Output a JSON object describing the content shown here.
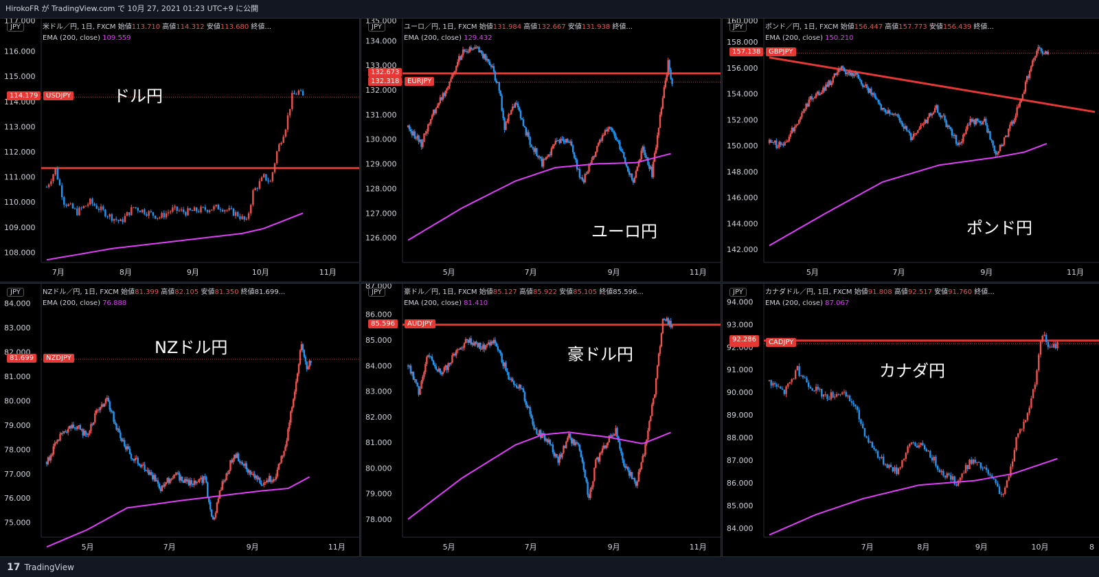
{
  "header": {
    "text": "HirokoFR が TradingView.com で 10月 27, 2021 01:23 UTC+9 に公開"
  },
  "footer": {
    "logo": "17",
    "brand": "TradingView"
  },
  "colors": {
    "up": "#ef5350",
    "down": "#2196f3",
    "ema": "#e040fb",
    "level": "#e53935",
    "bg": "#000000"
  },
  "chart_data": [
    {
      "type": "candlestick",
      "currency": "JPY",
      "symbol": "米ドル／円, 1日, FXCM",
      "ohlc": {
        "open_label": "始値",
        "open": "113.710",
        "high_label": "高値",
        "high": "114.312",
        "low_label": "安値",
        "low": "113.680",
        "close_label": "終値..."
      },
      "ema_label": "EMA (200, close)",
      "ema_value": "109.559",
      "overlay_title": "ドル円",
      "ticker": "USDJPY",
      "last_price": "114.179",
      "ylim": [
        107.6,
        117.3
      ],
      "yticks": [
        "108.000",
        "109.000",
        "110.000",
        "111.000",
        "112.000",
        "113.000",
        "114.000",
        "115.000",
        "116.000"
      ],
      "top_partial": "117.000",
      "xticks": [
        "7月",
        "8月",
        "9月",
        "10月",
        "11月"
      ],
      "xtick_days": [
        5,
        36,
        67,
        97,
        128
      ],
      "xmax": 142,
      "end_day": 118,
      "level": 111.35,
      "trendline": null,
      "ema_path": [
        [
          0,
          107.7
        ],
        [
          30,
          108.15
        ],
        [
          60,
          108.45
        ],
        [
          90,
          108.75
        ],
        [
          100,
          108.95
        ],
        [
          118,
          109.56
        ]
      ],
      "path": [
        [
          0,
          110.6
        ],
        [
          4,
          111.3
        ],
        [
          8,
          110.0
        ],
        [
          14,
          109.6
        ],
        [
          20,
          110.0
        ],
        [
          28,
          109.5
        ],
        [
          34,
          109.2
        ],
        [
          40,
          109.8
        ],
        [
          46,
          109.6
        ],
        [
          52,
          109.4
        ],
        [
          58,
          109.7
        ],
        [
          64,
          109.6
        ],
        [
          72,
          109.7
        ],
        [
          80,
          109.8
        ],
        [
          88,
          109.5
        ],
        [
          92,
          109.2
        ],
        [
          95,
          110.4
        ],
        [
          100,
          111.0
        ],
        [
          103,
          110.8
        ],
        [
          106,
          112.0
        ],
        [
          110,
          113.0
        ],
        [
          113,
          114.2
        ],
        [
          116,
          114.4
        ],
        [
          118,
          114.18
        ]
      ]
    },
    {
      "type": "candlestick",
      "currency": "JPY",
      "symbol": "ユーロ／円, 1日, FXCM",
      "ohlc": {
        "open_label": "始値",
        "open": "131.984",
        "high_label": "高値",
        "high": "132.667",
        "low_label": "安値",
        "low": "131.938",
        "close_label": "終値..."
      },
      "ema_label": "EMA (200, close)",
      "ema_value": "129.432",
      "overlay_title": "ユーロ円",
      "ticker": "EURJPY",
      "last_price": "132.318",
      "level_label": "132.673",
      "ylim": [
        125.0,
        134.9
      ],
      "yticks": [
        "126.000",
        "127.000",
        "128.000",
        "129.000",
        "130.000",
        "131.000",
        "132.000",
        "133.000",
        "134.000"
      ],
      "top_partial": "135.000",
      "xticks": [
        "5月",
        "7月",
        "9月",
        "11月"
      ],
      "xtick_days": [
        30,
        91,
        153,
        214
      ],
      "xmax": 230,
      "end_day": 197,
      "level": 132.673,
      "trendline": null,
      "ema_path": [
        [
          0,
          125.9
        ],
        [
          40,
          127.2
        ],
        [
          80,
          128.3
        ],
        [
          110,
          128.85
        ],
        [
          140,
          129.0
        ],
        [
          170,
          129.05
        ],
        [
          197,
          129.43
        ]
      ],
      "path": [
        [
          0,
          130.5
        ],
        [
          10,
          129.8
        ],
        [
          18,
          131.0
        ],
        [
          28,
          132.0
        ],
        [
          40,
          133.5
        ],
        [
          52,
          133.7
        ],
        [
          62,
          133.0
        ],
        [
          68,
          132.0
        ],
        [
          72,
          130.5
        ],
        [
          80,
          131.5
        ],
        [
          90,
          130.0
        ],
        [
          100,
          129.0
        ],
        [
          110,
          129.8
        ],
        [
          120,
          130.0
        ],
        [
          130,
          128.2
        ],
        [
          140,
          129.5
        ],
        [
          150,
          130.6
        ],
        [
          160,
          129.4
        ],
        [
          168,
          128.2
        ],
        [
          175,
          129.6
        ],
        [
          182,
          128.6
        ],
        [
          188,
          131.0
        ],
        [
          194,
          133.1
        ],
        [
          197,
          132.3
        ]
      ]
    },
    {
      "type": "candlestick",
      "currency": "JPY",
      "symbol": "ポンド／円, 1日, FXCM",
      "ohlc": {
        "open_label": "始値",
        "open": "156.447",
        "high_label": "高値",
        "high": "157.773",
        "low_label": "安値",
        "low": "156.439",
        "close_label": "終値..."
      },
      "ema_label": "EMA (200, close)",
      "ema_value": "150.210",
      "overlay_title": "ポンド円",
      "ticker": "GBPJPY",
      "last_price": "157.138",
      "ylim": [
        141.0,
        159.8
      ],
      "yticks": [
        "142.000",
        "144.000",
        "146.000",
        "148.000",
        "150.000",
        "152.000",
        "154.000",
        "156.000",
        "158.000"
      ],
      "top_partial": "160.000",
      "xticks": [
        "5月",
        "7月",
        "9月",
        "11月"
      ],
      "xtick_days": [
        30,
        91,
        153,
        214
      ],
      "xmax": 230,
      "end_day": 197,
      "level": null,
      "trendline": [
        [
          0,
          156.8
        ],
        [
          230,
          152.6
        ]
      ],
      "ema_path": [
        [
          0,
          142.3
        ],
        [
          40,
          144.8
        ],
        [
          80,
          147.2
        ],
        [
          120,
          148.5
        ],
        [
          160,
          149.1
        ],
        [
          180,
          149.5
        ],
        [
          197,
          150.2
        ]
      ],
      "path": [
        [
          0,
          150.2
        ],
        [
          10,
          150.0
        ],
        [
          18,
          151.5
        ],
        [
          28,
          153.5
        ],
        [
          40,
          154.5
        ],
        [
          50,
          155.9
        ],
        [
          62,
          155.3
        ],
        [
          72,
          154.0
        ],
        [
          80,
          152.8
        ],
        [
          92,
          152.1
        ],
        [
          100,
          150.5
        ],
        [
          110,
          151.8
        ],
        [
          118,
          153.0
        ],
        [
          126,
          151.5
        ],
        [
          134,
          150.0
        ],
        [
          142,
          151.8
        ],
        [
          152,
          151.9
        ],
        [
          160,
          149.3
        ],
        [
          168,
          150.8
        ],
        [
          176,
          153.0
        ],
        [
          184,
          155.8
        ],
        [
          190,
          157.6
        ],
        [
          194,
          157.0
        ],
        [
          197,
          157.14
        ]
      ]
    },
    {
      "type": "candlestick",
      "currency": "JPY",
      "symbol": "NZドル／円, 1日, FXCM",
      "ohlc": {
        "open_label": "始値",
        "open": "81.399",
        "high_label": "高値",
        "high": "82.105",
        "low_label": "安値",
        "low": "81.350",
        "close_label": "終値81.699..."
      },
      "ema_label": "EMA (200, close)",
      "ema_value": "76.888",
      "overlay_title": "NZドル円",
      "ticker": "NZDJPY",
      "last_price": "81.699",
      "ylim": [
        74.4,
        84.8
      ],
      "yticks": [
        "75.000",
        "76.000",
        "77.000",
        "78.000",
        "79.000",
        "80.000",
        "81.000",
        "82.000",
        "83.000",
        "84.000"
      ],
      "top_partial": null,
      "xticks": [
        "5月",
        "7月",
        "9月",
        "11月"
      ],
      "xtick_days": [
        30,
        91,
        153,
        214
      ],
      "xmax": 230,
      "end_day": 197,
      "level": null,
      "trendline": null,
      "ema_path": [
        [
          0,
          74.0
        ],
        [
          30,
          74.7
        ],
        [
          60,
          75.6
        ],
        [
          100,
          75.9
        ],
        [
          130,
          76.1
        ],
        [
          160,
          76.3
        ],
        [
          180,
          76.4
        ],
        [
          197,
          76.9
        ]
      ],
      "path": [
        [
          0,
          77.5
        ],
        [
          10,
          78.5
        ],
        [
          20,
          79.0
        ],
        [
          30,
          78.6
        ],
        [
          38,
          79.6
        ],
        [
          45,
          80.0
        ],
        [
          55,
          78.5
        ],
        [
          65,
          77.6
        ],
        [
          75,
          77.2
        ],
        [
          85,
          76.4
        ],
        [
          95,
          77.0
        ],
        [
          108,
          76.6
        ],
        [
          118,
          76.8
        ],
        [
          124,
          75.0
        ],
        [
          130,
          76.5
        ],
        [
          140,
          77.8
        ],
        [
          150,
          77.2
        ],
        [
          160,
          76.6
        ],
        [
          170,
          76.9
        ],
        [
          178,
          78.0
        ],
        [
          185,
          80.5
        ],
        [
          190,
          82.3
        ],
        [
          194,
          81.3
        ],
        [
          197,
          81.7
        ]
      ]
    },
    {
      "type": "candlestick",
      "currency": "JPY",
      "symbol": "豪ドル／円, 1日, FXCM",
      "ohlc": {
        "open_label": "始値",
        "open": "85.127",
        "high_label": "高値",
        "high": "85.922",
        "low_label": "安値",
        "low": "85.105",
        "close_label": "終値85.596..."
      },
      "ema_label": "EMA (200, close)",
      "ema_value": "81.410",
      "overlay_title": "豪ドル円",
      "ticker": "AUDJPY",
      "last_price": "85.596",
      "ylim": [
        77.3,
        87.2
      ],
      "yticks": [
        "78.000",
        "79.000",
        "80.000",
        "81.000",
        "82.000",
        "83.000",
        "84.000",
        "85.000",
        "86.000"
      ],
      "top_partial": "87.000",
      "xticks": [
        "5月",
        "7月",
        "9月",
        "11月"
      ],
      "xtick_days": [
        30,
        91,
        153,
        214
      ],
      "xmax": 230,
      "end_day": 197,
      "level": 85.596,
      "trendline": null,
      "ema_path": [
        [
          0,
          78.0
        ],
        [
          40,
          79.6
        ],
        [
          80,
          80.9
        ],
        [
          100,
          81.3
        ],
        [
          120,
          81.4
        ],
        [
          150,
          81.2
        ],
        [
          175,
          80.95
        ],
        [
          197,
          81.41
        ]
      ],
      "path": [
        [
          0,
          84.0
        ],
        [
          8,
          83.0
        ],
        [
          15,
          84.5
        ],
        [
          25,
          83.6
        ],
        [
          35,
          84.5
        ],
        [
          45,
          85.0
        ],
        [
          55,
          84.7
        ],
        [
          65,
          84.9
        ],
        [
          75,
          83.6
        ],
        [
          85,
          83.0
        ],
        [
          95,
          81.5
        ],
        [
          105,
          81.0
        ],
        [
          112,
          80.3
        ],
        [
          120,
          81.2
        ],
        [
          128,
          80.8
        ],
        [
          135,
          78.8
        ],
        [
          140,
          80.2
        ],
        [
          148,
          81.0
        ],
        [
          155,
          81.5
        ],
        [
          162,
          80.0
        ],
        [
          170,
          79.4
        ],
        [
          176,
          80.5
        ],
        [
          184,
          83.0
        ],
        [
          190,
          85.8
        ],
        [
          197,
          85.6
        ]
      ]
    },
    {
      "type": "candlestick",
      "currency": "JPY",
      "symbol": "カナダドル／円, 1日, FXCM",
      "ohlc": {
        "open_label": "始値",
        "open": "91.808",
        "high_label": "高値",
        "high": "92.517",
        "low_label": "安値",
        "low": "91.760",
        "close_label": "終値..."
      },
      "ema_label": "EMA (200, close)",
      "ema_value": "87.067",
      "overlay_title": "カナダ円",
      "ticker": "CADJPY",
      "last_price": "92.147",
      "level_label": "92.286",
      "ylim": [
        83.6,
        94.8
      ],
      "yticks": [
        "84.000",
        "85.000",
        "86.000",
        "87.000",
        "88.000",
        "89.000",
        "90.000",
        "91.000",
        "92.000",
        "93.000",
        "94.000"
      ],
      "top_partial": null,
      "xticks": [
        "7月",
        "8月",
        "9月",
        "10月",
        "8"
      ],
      "xtick_days": [
        52,
        82,
        113,
        143,
        174
      ],
      "xmax": 174,
      "end_day": 154,
      "level": 92.286,
      "trendline": null,
      "ema_path": [
        [
          0,
          83.7
        ],
        [
          25,
          84.6
        ],
        [
          50,
          85.3
        ],
        [
          80,
          85.9
        ],
        [
          110,
          86.1
        ],
        [
          130,
          86.4
        ],
        [
          154,
          87.07
        ]
      ],
      "path": [
        [
          0,
          90.5
        ],
        [
          8,
          90.0
        ],
        [
          15,
          91.0
        ],
        [
          22,
          90.3
        ],
        [
          30,
          89.8
        ],
        [
          38,
          90.0
        ],
        [
          45,
          89.5
        ],
        [
          52,
          88.0
        ],
        [
          60,
          87.0
        ],
        [
          68,
          86.5
        ],
        [
          76,
          87.8
        ],
        [
          84,
          87.5
        ],
        [
          92,
          86.5
        ],
        [
          100,
          86.0
        ],
        [
          108,
          87.0
        ],
        [
          116,
          86.5
        ],
        [
          124,
          85.5
        ],
        [
          128,
          86.2
        ],
        [
          132,
          88.0
        ],
        [
          138,
          89.0
        ],
        [
          142,
          90.5
        ],
        [
          146,
          92.6
        ],
        [
          150,
          91.9
        ],
        [
          154,
          92.15
        ]
      ]
    }
  ]
}
